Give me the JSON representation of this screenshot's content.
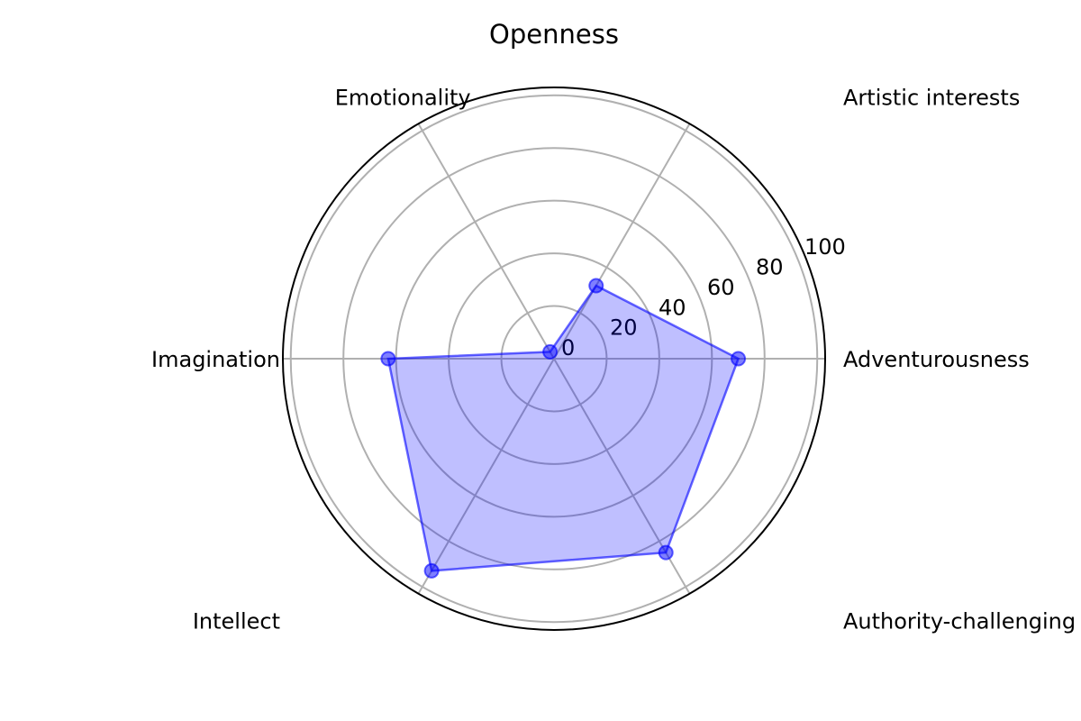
{
  "chart_data": {
    "type": "radar",
    "title": "Openness",
    "categories": [
      "Adventurousness",
      "Artistic interests",
      "Emotionality",
      "Imagination",
      "Intellect",
      "Authority-challenging"
    ],
    "series": [
      {
        "values": [
          70,
          32,
          3,
          63,
          93,
          85
        ]
      }
    ],
    "rlim": [
      0,
      103
    ],
    "r_ticks": [
      0,
      20,
      40,
      60,
      80,
      100
    ],
    "grid": true,
    "colors": {
      "series": "#0000ff",
      "grid": "#b0b0b0",
      "frame": "#000000"
    }
  }
}
